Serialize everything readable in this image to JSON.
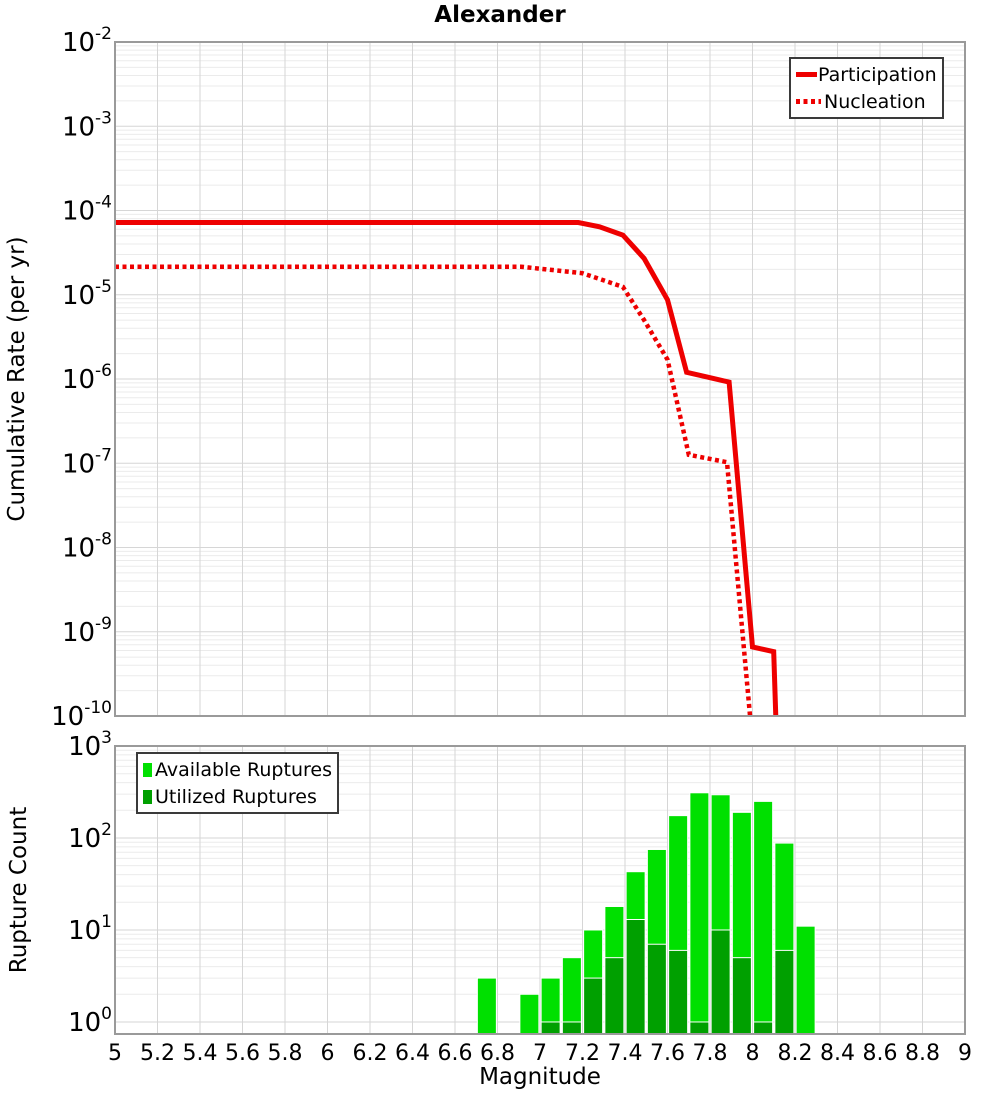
{
  "title": "Alexander",
  "x_axis": {
    "label": "Magnitude",
    "min": 5,
    "max": 9,
    "gridline_step": 0.2,
    "tick_labels": [
      "5",
      "5.2",
      "5.4",
      "5.6",
      "5.8",
      "6",
      "6.2",
      "6.4",
      "6.6",
      "6.8",
      "7",
      "7.2",
      "7.4",
      "7.6",
      "7.8",
      "8",
      "8.2",
      "8.4",
      "8.6",
      "8.8",
      "9"
    ]
  },
  "chart_data": [
    {
      "type": "line",
      "name": "cumulative-rate-plot",
      "title": "Alexander",
      "y_axis": {
        "label": "Cumulative Rate (per yr)",
        "scale": "log",
        "max_exp": -2,
        "min_exp": -10,
        "tick_exponents": [
          -2,
          -3,
          -4,
          -5,
          -6,
          -7,
          -8,
          -9,
          -10
        ]
      },
      "legend_position": "top-right",
      "series": [
        {
          "name": "Participation",
          "color": "#ee0000",
          "line_style": "solid",
          "points": [
            [
              5.0,
              7.2e-05
            ],
            [
              7.18,
              7.2e-05
            ],
            [
              7.28,
              6.4e-05
            ],
            [
              7.39,
              5.1e-05
            ],
            [
              7.49,
              2.7e-05
            ],
            [
              7.6,
              8.7e-06
            ],
            [
              7.69,
              1.2e-06
            ],
            [
              7.79,
              1.05e-06
            ],
            [
              7.89,
              9.2e-07
            ],
            [
              8.0,
              6.6e-10
            ],
            [
              8.1,
              5.8e-10
            ],
            [
              8.11,
              9e-11
            ]
          ]
        },
        {
          "name": "Nucleation",
          "color": "#ee0000",
          "line_style": "dotted",
          "points": [
            [
              5.0,
              2.15e-05
            ],
            [
              6.91,
              2.15e-05
            ],
            [
              7.2,
              1.8e-05
            ],
            [
              7.39,
              1.24e-05
            ],
            [
              7.49,
              5e-06
            ],
            [
              7.6,
              1.7e-06
            ],
            [
              7.7,
              1.26e-07
            ],
            [
              7.88,
              1.03e-07
            ],
            [
              7.99,
              9e-11
            ]
          ]
        }
      ]
    },
    {
      "type": "bar",
      "name": "rupture-count-plot",
      "y_axis": {
        "label": "Rupture Count",
        "scale": "log",
        "max_exp": 3,
        "min_exp": 0,
        "axis_min": 0.74,
        "tick_exponents": [
          3,
          2,
          1,
          0
        ]
      },
      "legend_position": "top-left",
      "bin_width": 0.1,
      "categories": [
        6.75,
        6.85,
        6.95,
        7.05,
        7.15,
        7.25,
        7.35,
        7.45,
        7.55,
        7.65,
        7.75,
        7.85,
        7.95,
        8.05,
        8.15,
        8.25
      ],
      "series": [
        {
          "name": "Available Ruptures",
          "color": "#00e000",
          "values": [
            3,
            0,
            2,
            3,
            5,
            10,
            18,
            43,
            75,
            175,
            310,
            295,
            190,
            250,
            88,
            11
          ]
        },
        {
          "name": "Utilized Ruptures",
          "color": "#00a000",
          "values": [
            0,
            0,
            0,
            1,
            1,
            3,
            5,
            13,
            7,
            6,
            1,
            10,
            5,
            1,
            6,
            0
          ]
        }
      ]
    }
  ],
  "colors": {
    "line_red": "#ee0000",
    "available_green": "#00e000",
    "utilized_green": "#00a000",
    "grid_major": "#d6d6d6",
    "grid_minor": "#ebebeb",
    "frame": "#9a9a9a",
    "background": "#ffffff",
    "text": "#000000"
  }
}
